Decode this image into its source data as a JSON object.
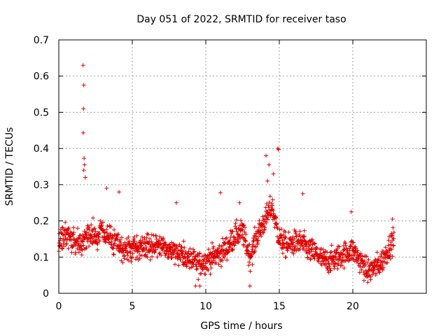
{
  "chart_data": {
    "type": "scatter",
    "title": "Day 051 of 2022, SRMTID for receiver taso",
    "xlabel": "GPS time / hours",
    "ylabel": "SRMTID / TECUs",
    "xlim": [
      0,
      25
    ],
    "ylim": [
      0,
      0.7
    ],
    "xticks": [
      0,
      5,
      10,
      15,
      20
    ],
    "xtick_labels": [
      "0",
      "5",
      "10",
      "15",
      "20"
    ],
    "yticks": [
      0,
      0.1,
      0.2,
      0.3,
      0.4,
      0.5,
      0.6,
      0.7
    ],
    "ytick_labels": [
      "0",
      "0.1",
      "0.2",
      "0.3",
      "0.4",
      "0.5",
      "0.6",
      "0.7"
    ],
    "grid": true,
    "marker": "plus",
    "color": "#e00000",
    "series": [
      {
        "name": "SRMTID",
        "trend": [
          [
            0.0,
            0.15
          ],
          [
            0.5,
            0.16
          ],
          [
            1.0,
            0.15
          ],
          [
            1.5,
            0.14
          ],
          [
            2.0,
            0.16
          ],
          [
            2.5,
            0.16
          ],
          [
            3.0,
            0.17
          ],
          [
            3.5,
            0.15
          ],
          [
            4.0,
            0.13
          ],
          [
            4.5,
            0.12
          ],
          [
            5.0,
            0.12
          ],
          [
            5.5,
            0.13
          ],
          [
            6.0,
            0.13
          ],
          [
            6.5,
            0.13
          ],
          [
            7.0,
            0.13
          ],
          [
            7.5,
            0.12
          ],
          [
            8.0,
            0.12
          ],
          [
            8.5,
            0.1
          ],
          [
            9.0,
            0.09
          ],
          [
            9.5,
            0.08
          ],
          [
            10.0,
            0.09
          ],
          [
            10.5,
            0.1
          ],
          [
            11.0,
            0.11
          ],
          [
            11.5,
            0.13
          ],
          [
            12.0,
            0.16
          ],
          [
            12.5,
            0.17
          ],
          [
            13.0,
            0.1
          ],
          [
            13.5,
            0.16
          ],
          [
            14.0,
            0.2
          ],
          [
            14.5,
            0.24
          ],
          [
            15.0,
            0.15
          ],
          [
            15.5,
            0.13
          ],
          [
            16.0,
            0.14
          ],
          [
            16.5,
            0.14
          ],
          [
            17.0,
            0.12
          ],
          [
            17.5,
            0.11
          ],
          [
            18.0,
            0.09
          ],
          [
            18.5,
            0.09
          ],
          [
            19.0,
            0.1
          ],
          [
            19.5,
            0.11
          ],
          [
            20.0,
            0.12
          ],
          [
            20.5,
            0.09
          ],
          [
            21.0,
            0.06
          ],
          [
            21.5,
            0.07
          ],
          [
            22.0,
            0.09
          ],
          [
            22.5,
            0.13
          ],
          [
            22.8,
            0.15
          ]
        ],
        "peaks": [
          [
            1.65,
            0.63
          ],
          [
            1.7,
            0.575
          ],
          [
            1.68,
            0.51
          ],
          [
            1.66,
            0.443
          ],
          [
            1.72,
            0.373
          ],
          [
            1.75,
            0.355
          ],
          [
            1.8,
            0.32
          ],
          [
            1.7,
            0.34
          ],
          [
            3.25,
            0.29
          ],
          [
            4.1,
            0.28
          ],
          [
            8.0,
            0.25
          ],
          [
            11.0,
            0.278
          ],
          [
            12.3,
            0.25
          ],
          [
            13.0,
            0.02
          ],
          [
            14.1,
            0.38
          ],
          [
            14.3,
            0.355
          ],
          [
            14.6,
            0.33
          ],
          [
            14.9,
            0.4
          ],
          [
            14.95,
            0.397
          ],
          [
            14.2,
            0.31
          ],
          [
            16.6,
            0.275
          ],
          [
            19.9,
            0.225
          ],
          [
            22.7,
            0.205
          ],
          [
            9.3,
            0.02
          ],
          [
            9.6,
            0.02
          ]
        ]
      }
    ]
  }
}
